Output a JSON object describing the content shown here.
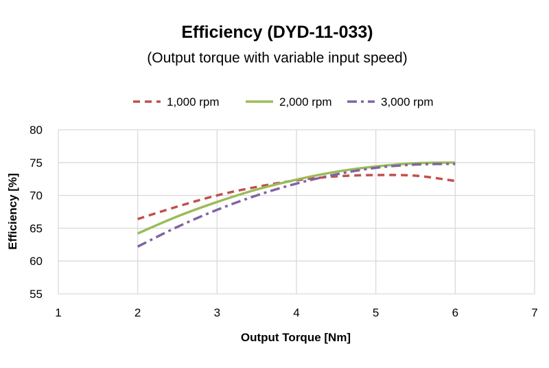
{
  "chart_data": {
    "type": "line",
    "title": "Efficiency (DYD-11-033)",
    "subtitle": "(Output torque with variable input speed)",
    "xlabel": "Output Torque [Nm]",
    "ylabel": "Efficiency [%]",
    "xlim": [
      1,
      7
    ],
    "ylim": [
      55,
      80
    ],
    "x_ticks": [
      "1",
      "2",
      "3",
      "4",
      "5",
      "6",
      "7"
    ],
    "y_ticks": [
      "55",
      "60",
      "65",
      "70",
      "75",
      "80"
    ],
    "grid": true,
    "legend_position": "top",
    "series": [
      {
        "name": "1,000 rpm",
        "color": "#c0504d",
        "dash": "dash",
        "x": [
          2,
          2.5,
          3,
          3.5,
          4,
          4.5,
          5,
          5.5,
          6
        ],
        "y": [
          66.4,
          68.3,
          70.0,
          71.3,
          72.3,
          72.9,
          73.1,
          73.0,
          72.2
        ]
      },
      {
        "name": "2,000 rpm",
        "color": "#9bbb59",
        "dash": "solid",
        "x": [
          2,
          2.5,
          3,
          3.5,
          4,
          4.5,
          5,
          5.5,
          6
        ],
        "y": [
          64.2,
          66.8,
          69.0,
          70.9,
          72.4,
          73.6,
          74.4,
          74.9,
          75.0
        ]
      },
      {
        "name": "3,000 rpm",
        "color": "#8064a2",
        "dash": "dashdot",
        "x": [
          2,
          2.5,
          3,
          3.5,
          4,
          4.5,
          5,
          5.5,
          6
        ],
        "y": [
          62.2,
          65.2,
          67.8,
          70.0,
          71.8,
          73.2,
          74.2,
          74.7,
          74.8
        ]
      }
    ]
  }
}
